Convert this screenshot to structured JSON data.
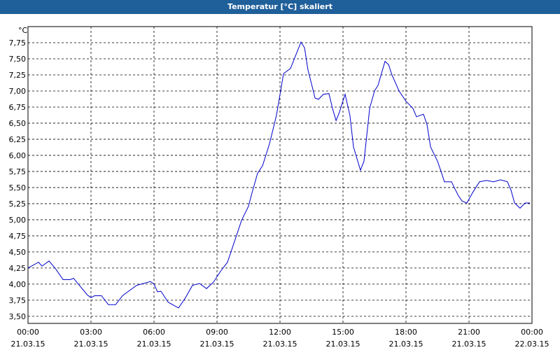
{
  "window_title": "Temperatur [°C] skaliert",
  "chart_data": {
    "type": "line",
    "y_unit": "°C",
    "color": "#0000cc",
    "grid": true,
    "xlim": [
      0,
      24
    ],
    "ylim": [
      3.39,
      8.0
    ],
    "xticks": [
      {
        "value": 0,
        "label": "00:00"
      },
      {
        "value": 3,
        "label": "03:00"
      },
      {
        "value": 6,
        "label": "06:00"
      },
      {
        "value": 9,
        "label": "09:00"
      },
      {
        "value": 12,
        "label": "12:00"
      },
      {
        "value": 15,
        "label": "15:00"
      },
      {
        "value": 18,
        "label": "18:00"
      },
      {
        "value": 21,
        "label": "21:00"
      },
      {
        "value": 24,
        "label": "00:00"
      }
    ],
    "xtick_dates": [
      "21.03.15",
      "21.03.15",
      "21.03.15",
      "21.03.15",
      "21.03.15",
      "21.03.15",
      "21.03.15",
      "21.03.15",
      "22.03.15"
    ],
    "yticks": [
      {
        "value": 3.5,
        "label": "3,50"
      },
      {
        "value": 3.75,
        "label": "3,75"
      },
      {
        "value": 4,
        "label": "4,00"
      },
      {
        "value": 4.25,
        "label": "4,25"
      },
      {
        "value": 4.5,
        "label": "4,50"
      },
      {
        "value": 4.75,
        "label": "4,75"
      },
      {
        "value": 5,
        "label": "5,00"
      },
      {
        "value": 5.25,
        "label": "5,25"
      },
      {
        "value": 5.5,
        "label": "5,50"
      },
      {
        "value": 5.75,
        "label": "5,75"
      },
      {
        "value": 6,
        "label": "6,00"
      },
      {
        "value": 6.25,
        "label": "6,25"
      },
      {
        "value": 6.5,
        "label": "6,50"
      },
      {
        "value": 6.75,
        "label": "6,75"
      },
      {
        "value": 7,
        "label": "7,00"
      },
      {
        "value": 7.25,
        "label": "7,25"
      },
      {
        "value": 7.5,
        "label": "7,50"
      },
      {
        "value": 7.75,
        "label": "7,75"
      }
    ],
    "x": [
      0,
      0.5,
      0.67,
      1,
      1.33,
      1.67,
      2,
      2.17,
      2.5,
      2.83,
      3,
      3.17,
      3.5,
      3.83,
      4.17,
      4.5,
      4.83,
      5.17,
      5.5,
      5.83,
      6,
      6.17,
      6.33,
      6.67,
      7,
      7.17,
      7.5,
      7.83,
      8.17,
      8.5,
      8.83,
      9.17,
      9.5,
      9.83,
      10.17,
      10.5,
      10.67,
      10.93,
      11.17,
      11.5,
      11.83,
      12.17,
      12.5,
      12.67,
      13,
      13.17,
      13.33,
      13.67,
      13.83,
      14.07,
      14.33,
      14.5,
      14.67,
      14.83,
      15.1,
      15.33,
      15.5,
      15.83,
      16,
      16.27,
      16.5,
      16.67,
      17,
      17.17,
      17.33,
      17.67,
      18,
      18.33,
      18.5,
      18.83,
      19,
      19.17,
      19.5,
      19.67,
      19.83,
      20.17,
      20.33,
      20.5,
      20.67,
      20.9,
      21.17,
      21.5,
      21.83,
      22.17,
      22.5,
      22.83,
      23,
      23.17,
      23.43,
      23.67,
      23.9
    ],
    "values": [
      4.25,
      4.34,
      4.28,
      4.36,
      4.23,
      4.07,
      4.07,
      4.09,
      3.96,
      3.83,
      3.79,
      3.82,
      3.82,
      3.68,
      3.68,
      3.82,
      3.9,
      3.98,
      4.01,
      4.04,
      4.0,
      3.88,
      3.89,
      3.72,
      3.66,
      3.63,
      3.79,
      3.98,
      4.01,
      3.93,
      4.03,
      4.2,
      4.34,
      4.66,
      4.99,
      5.21,
      5.42,
      5.72,
      5.84,
      6.18,
      6.62,
      7.27,
      7.35,
      7.49,
      7.76,
      7.67,
      7.33,
      6.89,
      6.87,
      6.95,
      6.96,
      6.73,
      6.54,
      6.67,
      6.95,
      6.62,
      6.13,
      5.77,
      5.91,
      6.73,
      7.0,
      7.09,
      7.46,
      7.41,
      7.25,
      7.0,
      6.84,
      6.73,
      6.6,
      6.64,
      6.48,
      6.13,
      5.91,
      5.75,
      5.59,
      5.59,
      5.48,
      5.37,
      5.29,
      5.26,
      5.42,
      5.59,
      5.61,
      5.59,
      5.62,
      5.59,
      5.46,
      5.26,
      5.18,
      5.26,
      5.26
    ]
  }
}
